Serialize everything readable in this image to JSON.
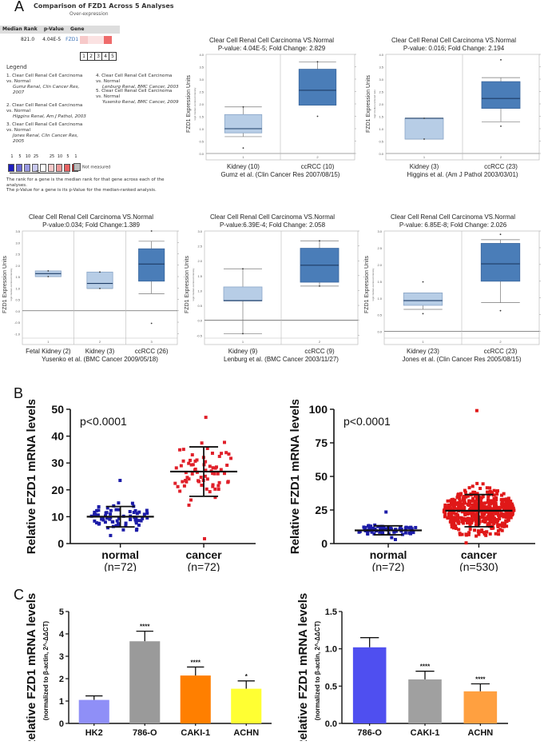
{
  "panels": {
    "A": "A",
    "B": "B",
    "C": "C"
  },
  "oncomine": {
    "title": "Comparison of FZD1 Across 5 Analyses",
    "subtitle": "Over-expression",
    "headers": [
      "Median Rank",
      "p-Value",
      "Gene"
    ],
    "row": {
      "median_rank": "821.0",
      "p_value": "4.04E-5",
      "gene": "FZD1"
    },
    "heat_cells": [
      "#f7c9c9",
      "#fbe2e2",
      "#fbe2e2",
      "#ef6b6b",
      "#ffffff"
    ],
    "indices": [
      "1",
      "2",
      "3",
      "4",
      "5"
    ],
    "legend_title": "Legend",
    "legend_items": [
      {
        "n": "1.",
        "title": "Clear Cell Renal Cell Carcinoma vs. Normal",
        "ref": "Gumz Renal, Clin Cancer Res, 2007"
      },
      {
        "n": "2.",
        "title": "Clear Cell Renal Cell Carcinoma vs. Normal",
        "ref": "Higgins Renal, Am J Pathol, 2003"
      },
      {
        "n": "3.",
        "title": "Clear Cell Renal Cell Carcinoma vs. Normal",
        "ref": "Jones Renal, Clin Cancer Res, 2005"
      },
      {
        "n": "4.",
        "title": "Clear Cell Renal Cell Carcinoma vs. Normal",
        "ref": "Lenburg Renal, BMC Cancer, 2003"
      },
      {
        "n": "5.",
        "title": "Clear Cell Renal Cell Carcinoma vs. Normal",
        "ref": "Yusenko Renal, BMC Cancer, 2009"
      }
    ],
    "scale_labels": [
      "1",
      "5",
      "10",
      "25",
      "",
      "25",
      "10",
      "5",
      "1"
    ],
    "scale_colors": [
      "#1f1fbf",
      "#6a6ad6",
      "#9a9ae3",
      "#c9c9f0",
      "#ffffff",
      "#f7c9c9",
      "#ef9a9a",
      "#e86262",
      "#d81f1f"
    ],
    "scale_pct": "%",
    "not_measured": "Not measured",
    "note1": "The rank for a gene is the median rank for that gene across each of the analyses.",
    "note2": "The p-Value for a gene is its p-Value for the median-ranked analysis."
  },
  "chart_data": [
    {
      "type": "box",
      "id": "gumz",
      "title": "Clear Cell Renal Cell Carcinoma VS.Normal",
      "subtitle": "P-value: 4.04E-5; Fold Change: 2.829",
      "ylabel": "FZD1 Expression Units",
      "ylabel_sub": "log2 median-centered intensity",
      "ylim": [
        0,
        4
      ],
      "yticks": [
        "0.0",
        "0.5",
        "1.0",
        "1.5",
        "2.0",
        "2.5",
        "3.0",
        "3.5",
        "4.0"
      ],
      "ytick_values": [
        0,
        0.5,
        1,
        1.5,
        2,
        2.5,
        3,
        3.5,
        4
      ],
      "index_labels": [
        "1",
        "2"
      ],
      "categories": [
        "Kidney (10)",
        "ccRCC (10)"
      ],
      "source": "Gumz et al. (Clin Cancer Res 2007/08/15)",
      "boxes": [
        {
          "min": 0.68,
          "q1": 0.83,
          "median": 1.0,
          "q3": 1.57,
          "max": 1.88,
          "outliers": [
            0.22,
            1.88
          ]
        },
        {
          "min": 1.95,
          "q1": 1.95,
          "median": 2.55,
          "q3": 3.4,
          "max": 3.7,
          "outliers": [
            1.5,
            3.7
          ]
        }
      ]
    },
    {
      "type": "box",
      "id": "higgins",
      "title": "Clear Cell Renal Cell Carcinoma VS.Normal",
      "subtitle": "P-value: 0.016; Fold Change: 2.194",
      "ylabel": "FZD1 Expression Units",
      "ylabel_sub": "log2 median-centered ratio",
      "ylim": [
        0,
        4
      ],
      "yticks": [
        "0.0",
        "0.5",
        "1.0",
        "1.5",
        "2.0",
        "2.5",
        "3.0",
        "3.5",
        "4.0"
      ],
      "ytick_values": [
        0,
        0.5,
        1,
        1.5,
        2,
        2.5,
        3,
        3.5,
        4
      ],
      "index_labels": [
        "1",
        "2"
      ],
      "categories": [
        "Kidney (3)",
        "ccRCC (23)"
      ],
      "source": "Higgins et al. (Am J Pathol 2003/03/01)",
      "boxes": [
        {
          "min": 0.58,
          "q1": 0.58,
          "median": 1.42,
          "q3": 1.42,
          "max": 1.42,
          "outliers": [
            0.58,
            1.42
          ]
        },
        {
          "min": 1.28,
          "q1": 1.82,
          "median": 2.22,
          "q3": 2.9,
          "max": 3.06,
          "outliers": [
            1.1,
            3.78
          ]
        }
      ]
    },
    {
      "type": "box",
      "id": "yusenko",
      "title": "Clear Cell Renal Cell Carcinoma VS.Normal",
      "subtitle": "P-value:0.034; Fold Change:1.389",
      "ylabel": "FZD1 Expression Units",
      "ylabel_sub": "log2 median-centered intensity",
      "ylim": [
        -1.2,
        3.5
      ],
      "yticks": [
        "-1.0",
        "-0.5",
        "0.0",
        "0.5",
        "1.0",
        "1.5",
        "2.0",
        "2.5",
        "3.0",
        "3.5"
      ],
      "ytick_values": [
        -1,
        -0.5,
        0,
        0.5,
        1,
        1.5,
        2,
        2.5,
        3,
        3.5
      ],
      "index_labels": [
        "1",
        "2",
        "3"
      ],
      "categories": [
        "Fetal Kidney (2)",
        "Kidney (3)",
        "ccRCC (26)"
      ],
      "source": "Yusenko et al. (BMC Cancer 2009/05/18)",
      "boxes": [
        {
          "min": 1.5,
          "q1": 1.5,
          "median": 1.63,
          "q3": 1.75,
          "max": 1.75,
          "outliers": [
            1.5,
            1.75
          ]
        },
        {
          "min": 0.98,
          "q1": 0.98,
          "median": 1.2,
          "q3": 1.7,
          "max": 1.7,
          "outliers": [
            0.98,
            1.7
          ]
        },
        {
          "min": 0.75,
          "q1": 1.3,
          "median": 2.05,
          "q3": 2.72,
          "max": 3.05,
          "outliers": [
            -0.55,
            3.5
          ]
        }
      ]
    },
    {
      "type": "box",
      "id": "lenburg",
      "title": "Clear Cell Renal Cell Carcinoma VS.Normal",
      "subtitle": "P-value:6.39E-4; Fold Change: 2.058",
      "ylabel": "FZD1 Expression Units",
      "ylabel_sub": "log2 median-centered intensity",
      "ylim": [
        -0.6,
        3
      ],
      "yticks": [
        "-0.5",
        "0.0",
        "0.5",
        "1.0",
        "1.5",
        "2.0",
        "2.5",
        "3.0"
      ],
      "ytick_values": [
        -0.5,
        0,
        0.5,
        1,
        1.5,
        2,
        2.5,
        3
      ],
      "index_labels": [
        "1",
        "2"
      ],
      "categories": [
        "Kidney (9)",
        "ccRCC (9)"
      ],
      "source": "Lenburg et al. (BMC Cancer 2003/11/27)",
      "boxes": [
        {
          "min": -0.45,
          "q1": 0.65,
          "median": 0.66,
          "q3": 1.12,
          "max": 1.73,
          "outliers": [
            -0.45,
            1.73
          ]
        },
        {
          "min": 1.15,
          "q1": 1.28,
          "median": 1.85,
          "q3": 2.42,
          "max": 2.67,
          "outliers": [
            1.15,
            2.67
          ]
        }
      ]
    },
    {
      "type": "box",
      "id": "jones",
      "title": "Clear Cell Renal Cell Carcinoma VS.Normal",
      "subtitle": "P-value: 6.85E-8; Fold Change: 2.026",
      "ylabel": "FZD1 Expression Units",
      "ylabel_sub": "log2 median-centered intensity",
      "ylim": [
        -0.2,
        3
      ],
      "yticks": [
        "0.0",
        "0.5",
        "1.0",
        "1.5",
        "2.0",
        "2.5",
        "3.0"
      ],
      "ytick_values": [
        0,
        0.5,
        1,
        1.5,
        2,
        2.5,
        3
      ],
      "index_labels": [
        "1",
        "2"
      ],
      "categories": [
        "Kidney (23)",
        "ccRCC (23)"
      ],
      "source": "Jones et al. (Clin Cancer Res 2005/08/15)",
      "boxes": [
        {
          "min": 0.66,
          "q1": 0.78,
          "median": 0.92,
          "q3": 1.15,
          "max": 1.15,
          "outliers": [
            0.53,
            1.48
          ]
        },
        {
          "min": 0.86,
          "q1": 1.5,
          "median": 2.02,
          "q3": 2.63,
          "max": 2.74,
          "outliers": [
            0.62,
            2.9
          ]
        }
      ]
    },
    {
      "type": "scatter",
      "id": "b-left",
      "ylabel": "Relative FZD1 mRNA levels",
      "ylim": [
        0,
        50
      ],
      "yticks": [
        "0",
        "10",
        "20",
        "30",
        "40",
        "50"
      ],
      "ytick_values": [
        0,
        10,
        20,
        30,
        40,
        50
      ],
      "annotation": "p<0.0001",
      "categories": [
        "normal",
        "cancer"
      ],
      "counts": [
        "(n=72)",
        "(n=72)"
      ],
      "series": [
        {
          "name": "normal",
          "n": 72,
          "mean": 10,
          "sd_low": 6.2,
          "sd_high": 13.8,
          "min": 3,
          "max": 23.5,
          "color": "#1c1ca8"
        },
        {
          "name": "cancer",
          "n": 72,
          "mean": 26.8,
          "sd_low": 17.6,
          "sd_high": 36,
          "min": 1.8,
          "max": 47,
          "color": "#e0202a"
        }
      ]
    },
    {
      "type": "scatter",
      "id": "b-right",
      "ylabel": "Relative FZD1 mRNA levels",
      "ylim": [
        0,
        100
      ],
      "yticks": [
        "0",
        "25",
        "50",
        "75",
        "100"
      ],
      "ytick_values": [
        0,
        25,
        50,
        75,
        100
      ],
      "annotation": "p<0.0001",
      "categories": [
        "normal",
        "cancer"
      ],
      "counts": [
        "(n=72)",
        "(n=530)"
      ],
      "series": [
        {
          "name": "normal",
          "n": 72,
          "mean": 9.8,
          "sd_low": 6.5,
          "sd_high": 13.2,
          "min": 3,
          "max": 23.5,
          "color": "#1c1ca8"
        },
        {
          "name": "cancer",
          "n": 530,
          "mean": 24.5,
          "sd_low": 12.5,
          "sd_high": 36.5,
          "min": 0.5,
          "max": 99,
          "color": "#e01818"
        }
      ]
    },
    {
      "type": "bar",
      "id": "c-left",
      "ylabel": "Relative FZD1 mRNA levels",
      "ylabel_sub": "(normalized to β-actin, 2^-ΔΔCT)",
      "ylim": [
        0,
        5
      ],
      "yticks": [
        "0",
        "1",
        "2",
        "3",
        "4",
        "5"
      ],
      "ytick_values": [
        0,
        1,
        2,
        3,
        4,
        5
      ],
      "categories": [
        "HK2",
        "786-O",
        "CAKI-1",
        "ACHN"
      ],
      "values": [
        1.05,
        3.67,
        2.14,
        1.55
      ],
      "errors": [
        0.18,
        0.45,
        0.38,
        0.35
      ],
      "significance": [
        "",
        "****",
        "****",
        "*"
      ],
      "colors": [
        "#8f8ff7",
        "#9a9a9a",
        "#ff7f00",
        "#ffff33"
      ]
    },
    {
      "type": "bar",
      "id": "c-right",
      "ylabel": "Relative FZD1 mRNA levels",
      "ylabel_sub": "(normalized to β-actin, 2^-ΔΔCT)",
      "ylim": [
        0,
        1.5
      ],
      "yticks": [
        "0.0",
        "0.5",
        "1.0",
        "1.5"
      ],
      "ytick_values": [
        0,
        0.5,
        1,
        1.5
      ],
      "categories": [
        "786-O",
        "CAKI-1",
        "ACHN"
      ],
      "values": [
        1.02,
        0.59,
        0.43
      ],
      "errors": [
        0.13,
        0.11,
        0.1
      ],
      "significance": [
        "",
        "****",
        "****"
      ],
      "colors": [
        "#4f4ff0",
        "#a0a0a0",
        "#ffa040"
      ]
    }
  ]
}
